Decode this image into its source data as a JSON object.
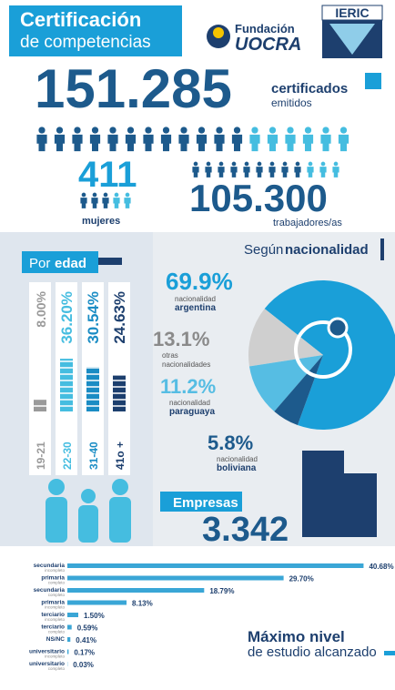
{
  "header": {
    "title": "Certificación",
    "subtitle": "de competencias",
    "org_prefix": "Fundación",
    "org": "UOCRA",
    "logo": "IERIC"
  },
  "totals": {
    "value": "151.285",
    "label": "certificados",
    "sublabel": "emitidos"
  },
  "women": {
    "value": "411",
    "label": "mujeres"
  },
  "workers": {
    "value": "105.300",
    "label": "trabajadores/as"
  },
  "companies": {
    "label": "Empresas",
    "value": "3.342"
  },
  "chart_data": [
    {
      "type": "bar",
      "title_prefix": "Por",
      "title": "edad",
      "categories": [
        "19-21",
        "22-30",
        "31-40",
        "41o +"
      ],
      "values": [
        8.0,
        36.2,
        30.54,
        24.63
      ],
      "value_labels": [
        "8.00%",
        "36.20%",
        "30.54%",
        "24.63%"
      ],
      "colors": [
        "#9a9a9a",
        "#45bde0",
        "#1a8cc4",
        "#1d3f6e"
      ]
    },
    {
      "type": "pie",
      "title_prefix": "Según",
      "title": "nacionalidad",
      "category_prefixes": [
        "nacionalidad",
        "otras",
        "nacionalidad",
        "nacionalidad"
      ],
      "categories": [
        "argentina",
        "nacionalidades",
        "paraguaya",
        "boliviana"
      ],
      "values": [
        69.9,
        13.1,
        11.2,
        5.8
      ],
      "value_labels": [
        "69.9%",
        "13.1%",
        "11.2%",
        "5.8%"
      ],
      "colors": [
        "#1a9fd8",
        "#cfcfcf",
        "#56bde3",
        "#1d5a8c"
      ]
    },
    {
      "type": "barh",
      "title": "Máximo nivel",
      "subtitle": "de estudio alcanzado",
      "categories": [
        "secundaria",
        "primaria",
        "secundaria",
        "primaria",
        "terciario",
        "terciario",
        "NS/NC",
        "universitario",
        "universitario"
      ],
      "sublabels": [
        "incompleto",
        "completo",
        "completo",
        "incompleto",
        "incompleto",
        "completo",
        null,
        "incompleto",
        "completo"
      ],
      "values": [
        40.68,
        29.7,
        18.79,
        8.13,
        1.5,
        0.59,
        0.41,
        0.17,
        0.03
      ],
      "value_labels": [
        "40.68%",
        "29.70%",
        "18.79%",
        "8.13%",
        "1.50%",
        "0.59%",
        "0.41%",
        "0.17%",
        "0.03%"
      ],
      "color": "#3aa6d6"
    }
  ]
}
